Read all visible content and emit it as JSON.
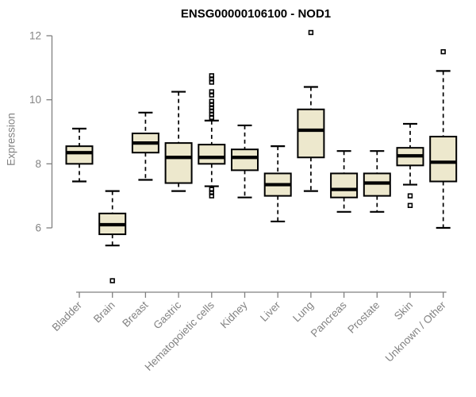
{
  "chart_data": {
    "type": "boxplot",
    "title": "ENSG00000106100 - NOD1",
    "ylabel": "Expression",
    "ylim": [
      6,
      12
    ],
    "yticks": [
      6,
      8,
      10,
      12
    ],
    "grid": false,
    "legend": "none",
    "categories": [
      "Bladder",
      "Brain",
      "Breast",
      "Gastric",
      "Hematopoietic cells",
      "Kidney",
      "Liver",
      "Lung",
      "Pancreas",
      "Prostate",
      "Skin",
      "Unknown / Other"
    ],
    "series": [
      {
        "category": "Bladder",
        "low": 7.45,
        "q1": 8.0,
        "median": 8.35,
        "q3": 8.55,
        "high": 9.1,
        "outliers": []
      },
      {
        "category": "Brain",
        "low": 5.45,
        "q1": 5.8,
        "median": 6.1,
        "q3": 6.45,
        "high": 7.15,
        "outliers": [
          4.35
        ]
      },
      {
        "category": "Breast",
        "low": 7.5,
        "q1": 8.35,
        "median": 8.65,
        "q3": 8.95,
        "high": 9.6,
        "outliers": []
      },
      {
        "category": "Gastric",
        "low": 7.15,
        "q1": 7.4,
        "median": 8.2,
        "q3": 8.65,
        "high": 10.25,
        "outliers": []
      },
      {
        "category": "Hematopoietic cells",
        "low": 7.3,
        "q1": 8.0,
        "median": 8.2,
        "q3": 8.6,
        "high": 9.35,
        "outliers": [
          10.75,
          10.65,
          10.55,
          10.25,
          10.15,
          9.95,
          9.85,
          9.75,
          9.65,
          9.55,
          9.45,
          7.2,
          7.1,
          7.0
        ]
      },
      {
        "category": "Kidney",
        "low": 6.95,
        "q1": 7.8,
        "median": 8.2,
        "q3": 8.45,
        "high": 9.2,
        "outliers": []
      },
      {
        "category": "Liver",
        "low": 6.2,
        "q1": 7.0,
        "median": 7.35,
        "q3": 7.7,
        "high": 8.55,
        "outliers": []
      },
      {
        "category": "Lung",
        "low": 7.15,
        "q1": 8.2,
        "median": 9.05,
        "q3": 9.7,
        "high": 10.4,
        "outliers": [
          12.1
        ]
      },
      {
        "category": "Pancreas",
        "low": 6.5,
        "q1": 6.95,
        "median": 7.2,
        "q3": 7.7,
        "high": 8.4,
        "outliers": []
      },
      {
        "category": "Prostate",
        "low": 6.5,
        "q1": 7.0,
        "median": 7.4,
        "q3": 7.7,
        "high": 8.4,
        "outliers": []
      },
      {
        "category": "Skin",
        "low": 7.35,
        "q1": 7.95,
        "median": 8.25,
        "q3": 8.5,
        "high": 9.25,
        "outliers": [
          7.0,
          6.7
        ]
      },
      {
        "category": "Unknown / Other",
        "low": 6.0,
        "q1": 7.45,
        "median": 8.05,
        "q3": 8.85,
        "high": 10.9,
        "outliers": [
          11.5
        ]
      }
    ],
    "colors": {
      "box_fill": "#EDE8CD",
      "box_stroke": "#000000",
      "median": "#000000",
      "whisker": "#000000",
      "axis": "#808080",
      "tick_text": "#838383",
      "title": "#000000",
      "background": "#FFFFFF"
    }
  }
}
